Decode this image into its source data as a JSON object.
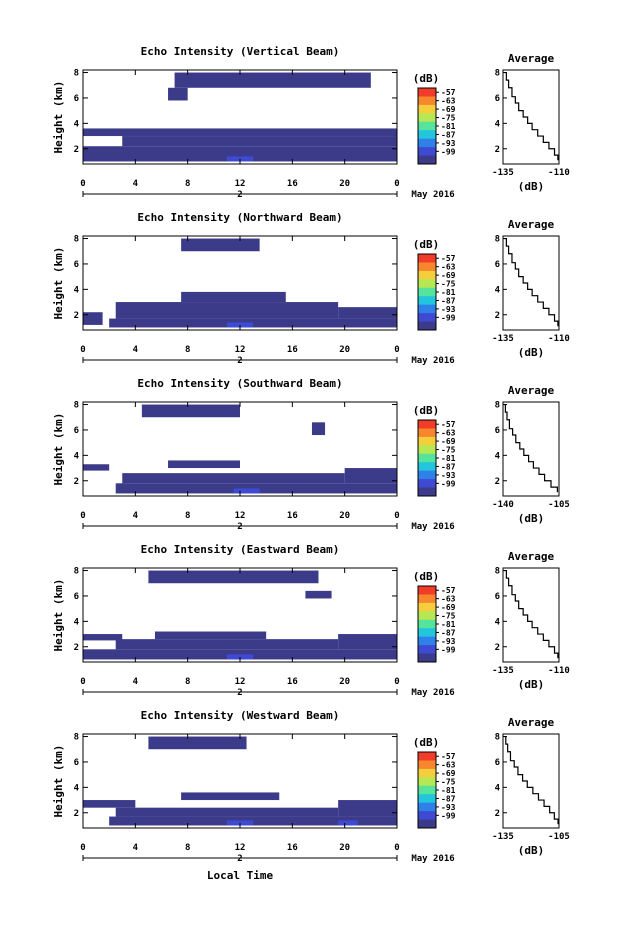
{
  "figure": {
    "bottom_label": "Local Time"
  },
  "colorbar": {
    "unit_label": "(dB)",
    "tick_labels": [
      "-57",
      "-63",
      "-69",
      "-75",
      "-81",
      "-87",
      "-93",
      "-99"
    ],
    "colors": [
      "#f23c2a",
      "#f7862e",
      "#f5cf3b",
      "#b5e855",
      "#56e39b",
      "#21c6dd",
      "#2f80e9",
      "#3d4ad1",
      "#3c3b8a"
    ],
    "background_color": "#ffffff"
  },
  "chart_data": [
    {
      "type": "heatmap",
      "title": "Echo Intensity (Vertical Beam)",
      "ylabel": "Height (km)",
      "xlim": [
        0,
        24
      ],
      "ylim": [
        0.8,
        8.2
      ],
      "xticks": [
        "0",
        "4",
        "8",
        "12",
        "16",
        "20",
        "0"
      ],
      "yticks": [
        "2",
        "4",
        "6",
        "8"
      ],
      "date_marker": "2",
      "date_label": "May 2016",
      "echo_layers": [
        {
          "x": [
            0.0,
            24.0
          ],
          "y": [
            1.0,
            2.2
          ],
          "color": "#3c3b8a"
        },
        {
          "x": [
            3.0,
            24.0
          ],
          "y": [
            2.2,
            3.0
          ],
          "color": "#3c3b8a"
        },
        {
          "x": [
            0.0,
            24.0
          ],
          "y": [
            3.0,
            3.6
          ],
          "color": "#3c3b8a"
        },
        {
          "x": [
            7.0,
            22.0
          ],
          "y": [
            6.8,
            8.0
          ],
          "color": "#3c3b8a"
        },
        {
          "x": [
            6.5,
            8.0
          ],
          "y": [
            5.8,
            6.8
          ],
          "color": "#3c3b8a"
        },
        {
          "x": [
            11.0,
            13.0
          ],
          "y": [
            1.0,
            1.4
          ],
          "color": "#3d4ad1"
        }
      ]
    },
    {
      "type": "line",
      "title": "Average",
      "xlabel": "(dB)",
      "xlim": [
        -135,
        -110
      ],
      "ylim": [
        0.8,
        8.2
      ],
      "xticks": [
        "-135",
        "-110"
      ],
      "yticks": [
        "2",
        "4",
        "6",
        "8"
      ],
      "x": [
        -134.5,
        -133.5,
        -132.5,
        -131,
        -129.5,
        -128,
        -126,
        -124,
        -122,
        -119.5,
        -117,
        -114.5,
        -112,
        -110.5
      ],
      "y": [
        8.0,
        7.4,
        6.8,
        6.1,
        5.6,
        5.0,
        4.5,
        4.0,
        3.5,
        3.0,
        2.5,
        2.0,
        1.5,
        1.1
      ]
    },
    {
      "type": "heatmap",
      "title": "Echo Intensity (Northward Beam)",
      "ylabel": "Height (km)",
      "xlim": [
        0,
        24
      ],
      "ylim": [
        0.8,
        8.2
      ],
      "xticks": [
        "0",
        "4",
        "8",
        "12",
        "16",
        "20",
        "0"
      ],
      "yticks": [
        "2",
        "4",
        "6",
        "8"
      ],
      "date_marker": "2",
      "date_label": "May 2016",
      "echo_layers": [
        {
          "x": [
            2.0,
            24.0
          ],
          "y": [
            1.0,
            1.7
          ],
          "color": "#3c3b8a"
        },
        {
          "x": [
            2.5,
            19.5
          ],
          "y": [
            1.7,
            3.0
          ],
          "color": "#3c3b8a"
        },
        {
          "x": [
            19.5,
            24.0
          ],
          "y": [
            1.7,
            2.6
          ],
          "color": "#3c3b8a"
        },
        {
          "x": [
            7.5,
            15.5
          ],
          "y": [
            3.0,
            3.8
          ],
          "color": "#3c3b8a"
        },
        {
          "x": [
            0.0,
            1.5
          ],
          "y": [
            1.2,
            2.2
          ],
          "color": "#3c3b8a"
        },
        {
          "x": [
            7.5,
            13.5
          ],
          "y": [
            7.0,
            8.0
          ],
          "color": "#3c3b8a"
        },
        {
          "x": [
            11.0,
            13.0
          ],
          "y": [
            1.0,
            1.4
          ],
          "color": "#3d4ad1"
        }
      ]
    },
    {
      "type": "line",
      "title": "Average",
      "xlabel": "(dB)",
      "xlim": [
        -135,
        -110
      ],
      "ylim": [
        0.8,
        8.2
      ],
      "xticks": [
        "-135",
        "-110"
      ],
      "yticks": [
        "2",
        "4",
        "6",
        "8"
      ],
      "x": [
        -134.5,
        -133.5,
        -132.5,
        -131,
        -129.5,
        -128,
        -126,
        -124,
        -122,
        -119.5,
        -117,
        -114.5,
        -112,
        -110.5
      ],
      "y": [
        8.0,
        7.4,
        6.8,
        6.1,
        5.6,
        5.0,
        4.5,
        4.0,
        3.5,
        3.0,
        2.5,
        2.0,
        1.5,
        1.1
      ]
    },
    {
      "type": "heatmap",
      "title": "Echo Intensity (Southward Beam)",
      "ylabel": "Height (km)",
      "xlim": [
        0,
        24
      ],
      "ylim": [
        0.8,
        8.2
      ],
      "xticks": [
        "0",
        "4",
        "8",
        "12",
        "16",
        "20",
        "0"
      ],
      "yticks": [
        "2",
        "4",
        "6",
        "8"
      ],
      "date_marker": "2",
      "date_label": "May 2016",
      "echo_layers": [
        {
          "x": [
            2.5,
            24.0
          ],
          "y": [
            1.0,
            1.8
          ],
          "color": "#3c3b8a"
        },
        {
          "x": [
            3.0,
            20.0
          ],
          "y": [
            1.8,
            2.6
          ],
          "color": "#3c3b8a"
        },
        {
          "x": [
            20.0,
            24.0
          ],
          "y": [
            1.8,
            3.0
          ],
          "color": "#3c3b8a"
        },
        {
          "x": [
            0.0,
            2.0
          ],
          "y": [
            2.8,
            3.3
          ],
          "color": "#3c3b8a"
        },
        {
          "x": [
            6.5,
            12.0
          ],
          "y": [
            3.0,
            3.6
          ],
          "color": "#3c3b8a"
        },
        {
          "x": [
            4.5,
            12.0
          ],
          "y": [
            7.0,
            8.0
          ],
          "color": "#3c3b8a"
        },
        {
          "x": [
            17.5,
            18.5
          ],
          "y": [
            5.6,
            6.6
          ],
          "color": "#3c3b8a"
        },
        {
          "x": [
            11.5,
            13.5
          ],
          "y": [
            1.0,
            1.4
          ],
          "color": "#3d4ad1"
        }
      ]
    },
    {
      "type": "line",
      "title": "Average",
      "xlabel": "(dB)",
      "xlim": [
        -140,
        -105
      ],
      "ylim": [
        0.8,
        8.2
      ],
      "xticks": [
        "-140",
        "-105"
      ],
      "yticks": [
        "2",
        "4",
        "6",
        "8"
      ],
      "x": [
        -139.5,
        -138.5,
        -137.5,
        -136,
        -134,
        -132,
        -129.5,
        -127,
        -124,
        -121,
        -117.5,
        -114,
        -110,
        -106
      ],
      "y": [
        8.0,
        7.4,
        6.8,
        6.1,
        5.6,
        5.0,
        4.5,
        4.0,
        3.5,
        3.0,
        2.5,
        2.0,
        1.5,
        1.1
      ]
    },
    {
      "type": "heatmap",
      "title": "Echo Intensity (Eastward Beam)",
      "ylabel": "Height (km)",
      "xlim": [
        0,
        24
      ],
      "ylim": [
        0.8,
        8.2
      ],
      "xticks": [
        "0",
        "4",
        "8",
        "12",
        "16",
        "20",
        "0"
      ],
      "yticks": [
        "2",
        "4",
        "6",
        "8"
      ],
      "date_marker": "2",
      "date_label": "May 2016",
      "echo_layers": [
        {
          "x": [
            0.0,
            24.0
          ],
          "y": [
            1.0,
            1.8
          ],
          "color": "#3c3b8a"
        },
        {
          "x": [
            2.5,
            19.5
          ],
          "y": [
            1.8,
            2.6
          ],
          "color": "#3c3b8a"
        },
        {
          "x": [
            19.5,
            24.0
          ],
          "y": [
            1.8,
            3.0
          ],
          "color": "#3c3b8a"
        },
        {
          "x": [
            0.0,
            3.0
          ],
          "y": [
            2.5,
            3.0
          ],
          "color": "#3c3b8a"
        },
        {
          "x": [
            5.5,
            14.0
          ],
          "y": [
            2.6,
            3.2
          ],
          "color": "#3c3b8a"
        },
        {
          "x": [
            5.0,
            18.0
          ],
          "y": [
            7.0,
            8.0
          ],
          "color": "#3c3b8a"
        },
        {
          "x": [
            17.0,
            19.0
          ],
          "y": [
            5.8,
            6.4
          ],
          "color": "#3c3b8a"
        },
        {
          "x": [
            11.0,
            13.0
          ],
          "y": [
            1.0,
            1.4
          ],
          "color": "#3d4ad1"
        }
      ]
    },
    {
      "type": "line",
      "title": "Average",
      "xlabel": "(dB)",
      "xlim": [
        -135,
        -110
      ],
      "ylim": [
        0.8,
        8.2
      ],
      "xticks": [
        "-135",
        "-110"
      ],
      "yticks": [
        "2",
        "4",
        "6",
        "8"
      ],
      "x": [
        -134.5,
        -133.5,
        -132.5,
        -131,
        -129.5,
        -128,
        -126,
        -124,
        -122,
        -119.5,
        -117,
        -114.5,
        -112,
        -110.5
      ],
      "y": [
        8.0,
        7.4,
        6.8,
        6.1,
        5.6,
        5.0,
        4.5,
        4.0,
        3.5,
        3.0,
        2.5,
        2.0,
        1.5,
        1.1
      ]
    },
    {
      "type": "heatmap",
      "title": "Echo Intensity (Westward Beam)",
      "ylabel": "Height (km)",
      "xlim": [
        0,
        24
      ],
      "ylim": [
        0.8,
        8.2
      ],
      "xticks": [
        "0",
        "4",
        "8",
        "12",
        "16",
        "20",
        "0"
      ],
      "yticks": [
        "2",
        "4",
        "6",
        "8"
      ],
      "date_marker": "2",
      "date_label": "May 2016",
      "echo_layers": [
        {
          "x": [
            2.0,
            24.0
          ],
          "y": [
            1.0,
            1.7
          ],
          "color": "#3c3b8a"
        },
        {
          "x": [
            2.5,
            19.5
          ],
          "y": [
            1.7,
            2.4
          ],
          "color": "#3c3b8a"
        },
        {
          "x": [
            19.5,
            24.0
          ],
          "y": [
            1.7,
            3.0
          ],
          "color": "#3c3b8a"
        },
        {
          "x": [
            0.0,
            4.0
          ],
          "y": [
            2.4,
            3.0
          ],
          "color": "#3c3b8a"
        },
        {
          "x": [
            7.5,
            15.0
          ],
          "y": [
            3.0,
            3.6
          ],
          "color": "#3c3b8a"
        },
        {
          "x": [
            5.0,
            12.5
          ],
          "y": [
            7.0,
            8.0
          ],
          "color": "#3c3b8a"
        },
        {
          "x": [
            11.0,
            13.0
          ],
          "y": [
            1.0,
            1.4
          ],
          "color": "#3d4ad1"
        },
        {
          "x": [
            19.5,
            21.0
          ],
          "y": [
            1.0,
            1.4
          ],
          "color": "#3d4ad1"
        }
      ]
    },
    {
      "type": "line",
      "title": "Average",
      "xlabel": "(dB)",
      "xlim": [
        -135,
        -105
      ],
      "ylim": [
        0.8,
        8.2
      ],
      "xticks": [
        "-135",
        "-105"
      ],
      "yticks": [
        "2",
        "4",
        "6",
        "8"
      ],
      "x": [
        -134.5,
        -133.5,
        -132.5,
        -131,
        -129,
        -127,
        -124.5,
        -122,
        -119,
        -116,
        -113,
        -110,
        -107.5,
        -105.5
      ],
      "y": [
        8.0,
        7.4,
        6.8,
        6.1,
        5.6,
        5.0,
        4.5,
        4.0,
        3.5,
        3.0,
        2.5,
        2.0,
        1.5,
        1.1
      ]
    }
  ]
}
